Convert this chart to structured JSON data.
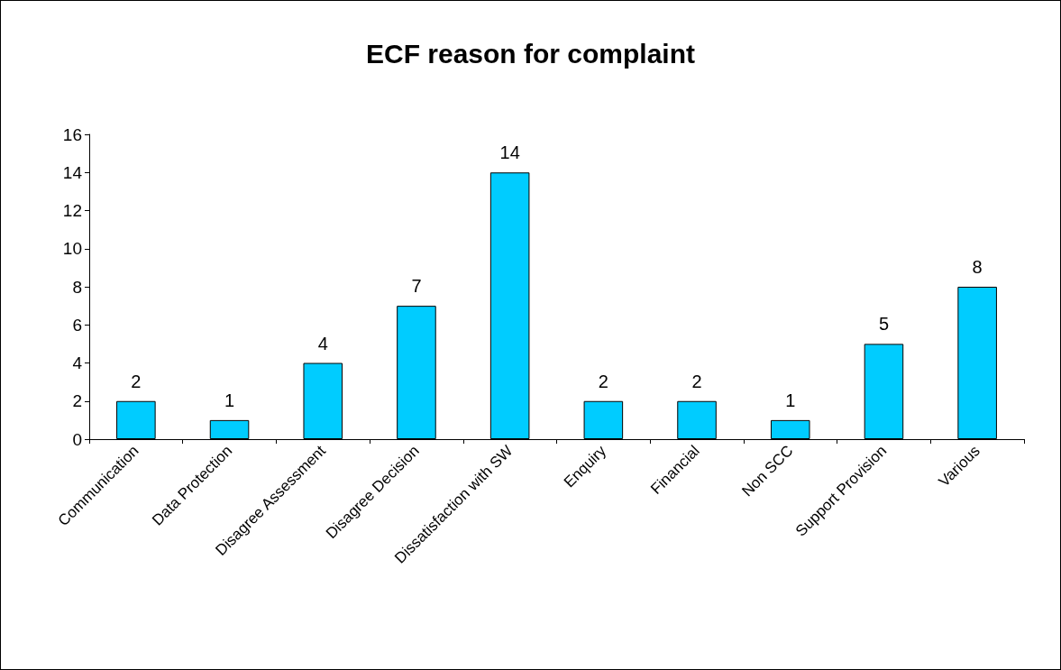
{
  "chart_data": {
    "type": "bar",
    "title": "ECF reason for complaint",
    "categories": [
      "Communication",
      "Data Protection",
      "Disagree Assessment",
      "Disagree Decision",
      "Dissatisfaction with SW",
      "Enquiry",
      "Financial",
      "Non SCC",
      "Support Provision",
      "Various"
    ],
    "values": [
      2,
      1,
      4,
      7,
      14,
      2,
      2,
      1,
      5,
      8
    ],
    "color": "#00ccff",
    "ylim": [
      0,
      16
    ],
    "yticks": [
      0,
      2,
      4,
      6,
      8,
      10,
      12,
      14,
      16
    ],
    "grid": false,
    "data_labels": true
  }
}
